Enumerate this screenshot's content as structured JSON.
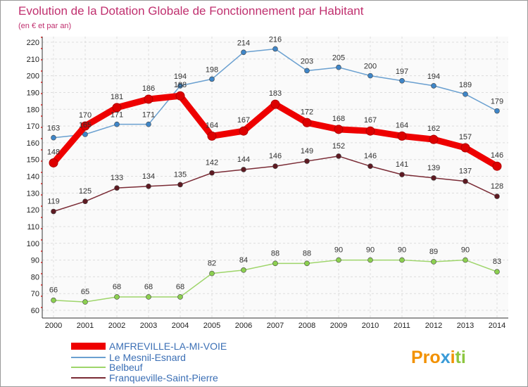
{
  "chart_data": {
    "type": "line",
    "title": "Evolution de la Dotation Globale de Fonctionnement par Habitant",
    "subtitle": "(en € et par an)",
    "xlabel": "",
    "ylabel": "",
    "x": [
      "2000",
      "2001",
      "2002",
      "2003",
      "2004",
      "2005",
      "2006",
      "2007",
      "2008",
      "2009",
      "2010",
      "2011",
      "2012",
      "2013",
      "2014"
    ],
    "ylim": [
      60,
      220
    ],
    "ytick_step": 10,
    "grid": true,
    "legend_position": "bottom-left",
    "series": [
      {
        "name": "AMFREVILLE-LA-MI-VOIE",
        "color": "#ee0000",
        "marker_color": "#dd0000",
        "values": [
          148,
          170,
          181,
          186,
          188,
          164,
          167,
          183,
          172,
          168,
          167,
          164,
          162,
          157,
          146
        ]
      },
      {
        "name": "Le Mesnil-Esnard",
        "color": "#6aa0d0",
        "marker_color": "#3f86c8",
        "values": [
          163,
          165,
          171,
          171,
          194,
          198,
          214,
          216,
          203,
          205,
          200,
          197,
          194,
          189,
          179
        ]
      },
      {
        "name": "Belbeuf",
        "color": "#9ed56a",
        "marker_color": "#8cd050",
        "values": [
          66,
          65,
          68,
          68,
          68,
          82,
          84,
          88,
          88,
          90,
          90,
          90,
          89,
          90,
          83
        ]
      },
      {
        "name": "Franqueville-Saint-Pierre",
        "color": "#7a2b35",
        "marker_color": "#5e1a22",
        "values": [
          119,
          125,
          133,
          134,
          135,
          142,
          144,
          146,
          149,
          152,
          146,
          141,
          139,
          137,
          128
        ]
      }
    ]
  },
  "logo": {
    "text": "Proxiti"
  }
}
